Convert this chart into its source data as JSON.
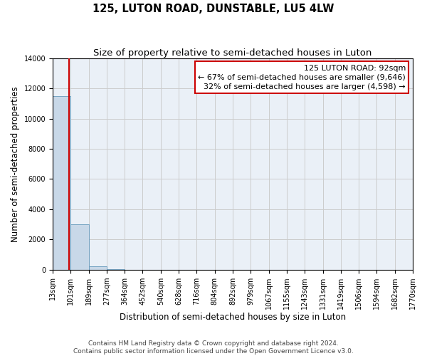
{
  "title": "125, LUTON ROAD, DUNSTABLE, LU5 4LW",
  "subtitle": "Size of property relative to semi-detached houses in Luton",
  "xlabel": "Distribution of semi-detached houses by size in Luton",
  "ylabel": "Number of semi-detached properties",
  "bar_edges": [
    13,
    101,
    189,
    277,
    364,
    452,
    540,
    628,
    716,
    804,
    892,
    979,
    1067,
    1155,
    1243,
    1331,
    1419,
    1506,
    1594,
    1682,
    1770
  ],
  "bar_heights": [
    11500,
    3000,
    200,
    30,
    10,
    5,
    3,
    2,
    2,
    1,
    1,
    1,
    1,
    0,
    0,
    0,
    0,
    0,
    0,
    0
  ],
  "bar_color": "#c8d8e8",
  "bar_edge_color": "#6699bb",
  "property_size": 92,
  "property_line_color": "#cc0000",
  "annotation_line1": "125 LUTON ROAD: 92sqm",
  "annotation_line2": "← 67% of semi-detached houses are smaller (9,646)",
  "annotation_line3": "32% of semi-detached houses are larger (4,598) →",
  "annotation_box_color": "#ffffff",
  "annotation_box_edge_color": "#cc0000",
  "ylim": [
    0,
    14000
  ],
  "yticks": [
    0,
    2000,
    4000,
    6000,
    8000,
    10000,
    12000,
    14000
  ],
  "tick_labels": [
    "13sqm",
    "101sqm",
    "189sqm",
    "277sqm",
    "364sqm",
    "452sqm",
    "540sqm",
    "628sqm",
    "716sqm",
    "804sqm",
    "892sqm",
    "979sqm",
    "1067sqm",
    "1155sqm",
    "1243sqm",
    "1331sqm",
    "1419sqm",
    "1506sqm",
    "1594sqm",
    "1682sqm",
    "1770sqm"
  ],
  "footer_line1": "Contains HM Land Registry data © Crown copyright and database right 2024.",
  "footer_line2": "Contains public sector information licensed under the Open Government Licence v3.0.",
  "background_color": "#ffffff",
  "grid_color": "#cccccc",
  "title_fontsize": 10.5,
  "subtitle_fontsize": 9.5,
  "axis_fontsize": 8.5,
  "tick_fontsize": 7,
  "footer_fontsize": 6.5,
  "annotation_fontsize": 8
}
